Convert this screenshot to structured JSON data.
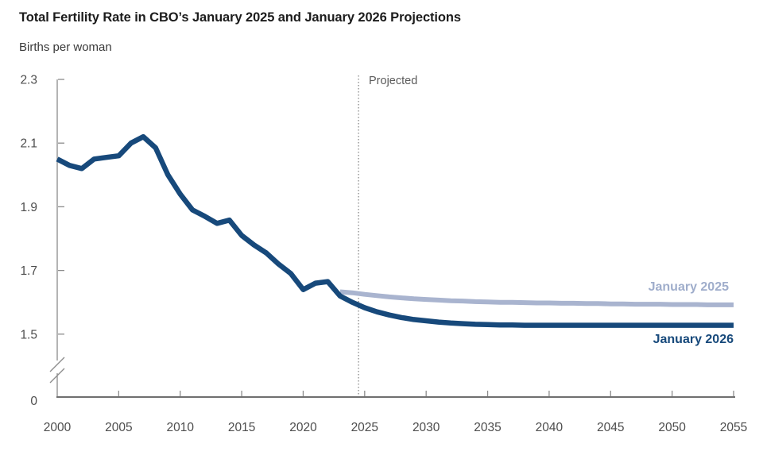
{
  "chart_data": {
    "type": "line",
    "title": "Total Fertility Rate in CBO’s January 2025 and January 2026 Projections",
    "ylabel": "Births per woman",
    "projected_label": "Projected",
    "projected_divider_year": 2024.5,
    "xlim": [
      2000,
      2055
    ],
    "ylim_shown": [
      1.5,
      2.3
    ],
    "y_axis_break_to_zero": true,
    "grid": false,
    "legend_position": "right-end-of-lines",
    "x_tick_labels": [
      2000,
      2005,
      2010,
      2015,
      2020,
      2025,
      2030,
      2035,
      2040,
      2045,
      2050,
      2055
    ],
    "y_tick_labels": [
      "2.3",
      "2.1",
      "1.9",
      "1.7",
      "1.5"
    ],
    "y_zero_label": "0",
    "colors": {
      "axis": "#8c8c8c",
      "x_axis": "#6f6f6f",
      "tick_text": "#4d4d4d",
      "divider": "#666666",
      "title_text": "#1c1c1c"
    },
    "series": [
      {
        "name": "January 2025",
        "role": "projection",
        "color": "#a9b4cf",
        "label_color": "#9fadcb",
        "line_width": 6,
        "start_year": 2023,
        "values": [
          1.633,
          1.63,
          1.625,
          1.621,
          1.617,
          1.614,
          1.611,
          1.609,
          1.607,
          1.605,
          1.604,
          1.602,
          1.601,
          1.6,
          1.6,
          1.599,
          1.598,
          1.598,
          1.597,
          1.597,
          1.596,
          1.596,
          1.595,
          1.595,
          1.594,
          1.594,
          1.594,
          1.593,
          1.593,
          1.593,
          1.592,
          1.592,
          1.592
        ]
      },
      {
        "name": "January 2026",
        "role": "history-and-projection",
        "color": "#17497b",
        "label_color": "#17497b",
        "line_width": 6.5,
        "start_year": 2000,
        "values": [
          2.05,
          2.03,
          2.02,
          2.05,
          2.055,
          2.06,
          2.1,
          2.12,
          2.085,
          2.0,
          1.94,
          1.89,
          1.87,
          1.848,
          1.858,
          1.81,
          1.78,
          1.755,
          1.72,
          1.69,
          1.64,
          1.66,
          1.665,
          1.62,
          1.6,
          1.583,
          1.57,
          1.56,
          1.552,
          1.546,
          1.542,
          1.538,
          1.535,
          1.533,
          1.531,
          1.53,
          1.529,
          1.529,
          1.528,
          1.528,
          1.528,
          1.528,
          1.528,
          1.528,
          1.528,
          1.528,
          1.528,
          1.528,
          1.528,
          1.528,
          1.528,
          1.528,
          1.528,
          1.528,
          1.528,
          1.528
        ]
      }
    ]
  }
}
